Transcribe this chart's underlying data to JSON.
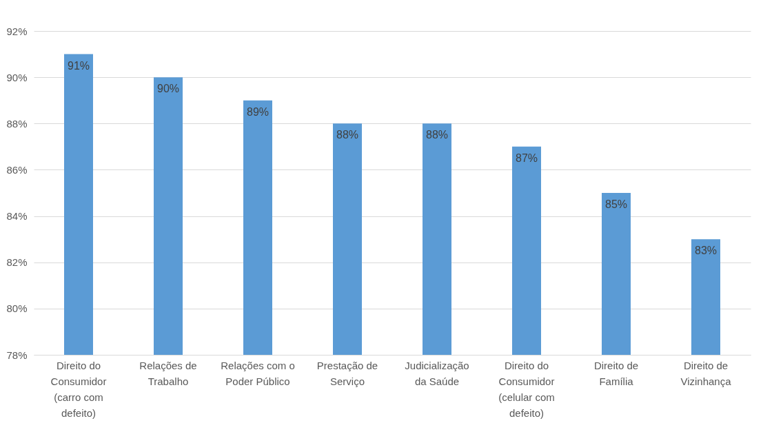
{
  "chart_data": {
    "type": "bar",
    "categories": [
      "Direito do Consumidor (carro com defeito)",
      "Relações de Trabalho",
      "Relações com o Poder Público",
      "Prestação de Serviço",
      "Judicialização da Saúde",
      "Direito do Consumidor (celular com defeito)",
      "Direito de Família",
      "Direito de Vizinhança"
    ],
    "values": [
      91,
      90,
      89,
      88,
      88,
      87,
      85,
      83
    ],
    "value_labels": [
      "91%",
      "90%",
      "89%",
      "88%",
      "88%",
      "87%",
      "85%",
      "83%"
    ],
    "color": "#5b9bd5",
    "ylim": [
      78,
      92
    ],
    "yticks": [
      {
        "value": 78,
        "label": "78%"
      },
      {
        "value": 80,
        "label": "80%"
      },
      {
        "value": 82,
        "label": "82%"
      },
      {
        "value": 84,
        "label": "84%"
      },
      {
        "value": 86,
        "label": "86%"
      },
      {
        "value": 88,
        "label": "88%"
      },
      {
        "value": 90,
        "label": "90%"
      },
      {
        "value": 92,
        "label": "92%"
      }
    ],
    "grid": "y"
  }
}
